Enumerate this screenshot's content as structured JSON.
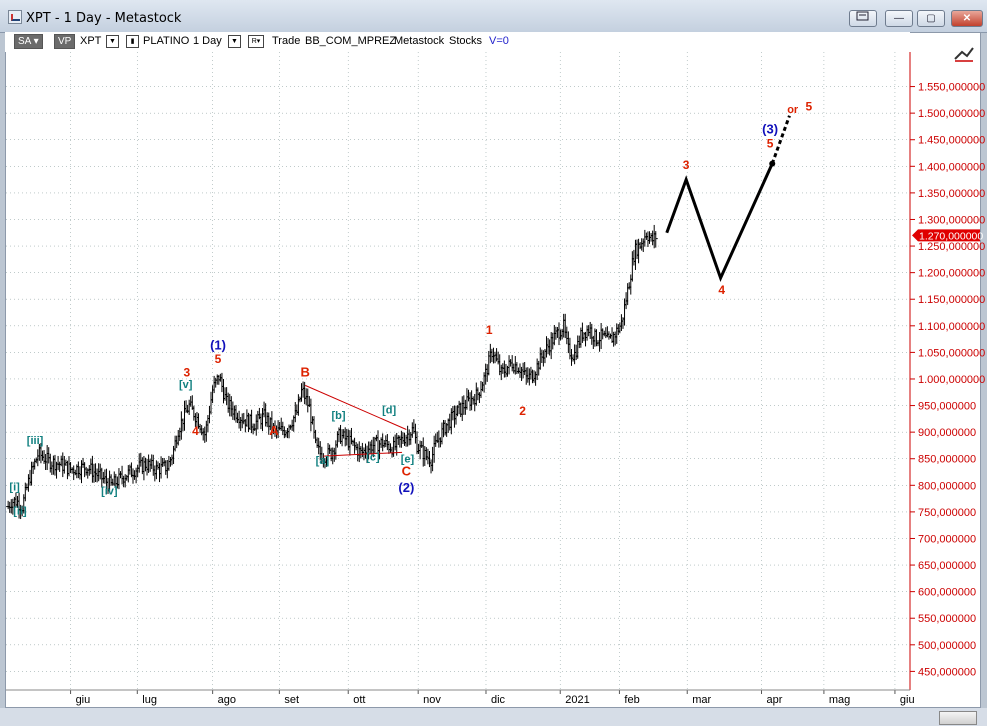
{
  "window": {
    "title": "XPT - 1 Day - Metastock",
    "buttons": {
      "restore_icon": "restore-icon",
      "minimize": "—",
      "maximize": "▢",
      "close": "✕"
    }
  },
  "toolbar": {
    "sa_label": "SA",
    "vp_label": "VP",
    "symbol": "XPT",
    "security_name": "PLATINO",
    "periodicity": "1 Day",
    "r_label": "R",
    "trade_label": "Trade",
    "template": "BB_COM_MPREZ",
    "source": "Metastock",
    "type": "Stocks",
    "volume": "V=0"
  },
  "chart_data": {
    "type": "bar",
    "series_color": "#000000",
    "y_axis": {
      "range": [
        415,
        1615
      ],
      "ticks": [
        "450,000000",
        "500,000000",
        "550,000000",
        "600,000000",
        "650,000000",
        "700,000000",
        "750,000000",
        "800,000000",
        "850,000000",
        "900,000000",
        "950,000000",
        "1.000,000000",
        "1.050,000000",
        "1.100,000000",
        "1.150,000000",
        "1.200,000000",
        "1.250,000000",
        "1.300,000000",
        "1.350,000000",
        "1.400,000000",
        "1.450,000000",
        "1.500,000000",
        "1.550,000000"
      ],
      "tick_values": [
        450,
        500,
        550,
        600,
        650,
        700,
        750,
        800,
        850,
        900,
        950,
        1000,
        1050,
        1100,
        1150,
        1200,
        1250,
        1300,
        1350,
        1400,
        1450,
        1500,
        1550
      ],
      "last_price_label": "1.270,000000",
      "last_price": 1270,
      "last_price_color": "#e00000"
    },
    "x_axis": {
      "ticks": [
        "giu",
        "lug",
        "ago",
        "set",
        "ott",
        "nov",
        "dic",
        "2021",
        "feb",
        "mar",
        "apr",
        "mag",
        "giu"
      ],
      "tick_days": [
        0,
        62,
        132,
        194,
        258,
        323,
        386,
        455,
        510,
        573,
        642,
        700,
        766
      ]
    },
    "price_path": [
      [
        -58,
        760
      ],
      [
        -55,
        770
      ],
      [
        -50,
        770
      ],
      [
        -45,
        760
      ],
      [
        -38,
        815
      ],
      [
        -30,
        860
      ],
      [
        -20,
        845
      ],
      [
        -10,
        840
      ],
      [
        0,
        830
      ],
      [
        15,
        835
      ],
      [
        25,
        820
      ],
      [
        38,
        800
      ],
      [
        50,
        818
      ],
      [
        60,
        830
      ],
      [
        70,
        840
      ],
      [
        80,
        830
      ],
      [
        90,
        835
      ],
      [
        95,
        860
      ],
      [
        100,
        905
      ],
      [
        110,
        950
      ],
      [
        118,
        925
      ],
      [
        125,
        895
      ],
      [
        132,
        980
      ],
      [
        138,
        1005
      ],
      [
        145,
        955
      ],
      [
        152,
        940
      ],
      [
        160,
        925
      ],
      [
        170,
        915
      ],
      [
        180,
        930
      ],
      [
        190,
        900
      ],
      [
        200,
        905
      ],
      [
        210,
        935
      ],
      [
        215,
        980
      ],
      [
        222,
        945
      ],
      [
        228,
        870
      ],
      [
        234,
        855
      ],
      [
        242,
        860
      ],
      [
        250,
        895
      ],
      [
        260,
        880
      ],
      [
        270,
        860
      ],
      [
        280,
        875
      ],
      [
        290,
        880
      ],
      [
        300,
        870
      ],
      [
        310,
        890
      ],
      [
        318,
        905
      ],
      [
        322,
        875
      ],
      [
        330,
        855
      ],
      [
        335,
        850
      ],
      [
        340,
        880
      ],
      [
        348,
        910
      ],
      [
        358,
        935
      ],
      [
        368,
        955
      ],
      [
        378,
        970
      ],
      [
        385,
        1005
      ],
      [
        392,
        1055
      ],
      [
        400,
        1010
      ],
      [
        410,
        1030
      ],
      [
        418,
        1020
      ],
      [
        424,
        1000
      ],
      [
        430,
        1010
      ],
      [
        440,
        1050
      ],
      [
        450,
        1080
      ],
      [
        458,
        1100
      ],
      [
        462,
        1055
      ],
      [
        468,
        1045
      ],
      [
        475,
        1085
      ],
      [
        482,
        1095
      ],
      [
        488,
        1075
      ],
      [
        494,
        1080
      ],
      [
        500,
        1070
      ],
      [
        506,
        1085
      ],
      [
        512,
        1105
      ],
      [
        518,
        1170
      ],
      [
        524,
        1240
      ],
      [
        530,
        1255
      ],
      [
        535,
        1275
      ],
      [
        540,
        1260
      ],
      [
        545,
        1270
      ]
    ],
    "projection": [
      [
        554,
        1275
      ],
      [
        572,
        1375
      ],
      [
        604,
        1190
      ],
      [
        652,
        1405
      ]
    ],
    "projection_dotted": [
      [
        652,
        1405
      ],
      [
        668,
        1495
      ]
    ],
    "lines": [
      {
        "from": [
          218,
          988
        ],
        "to": [
          312,
          905
        ],
        "color": "#cc0000"
      },
      {
        "from": [
          235,
          855
        ],
        "to": [
          308,
          862
        ],
        "color": "#cc0000"
      }
    ],
    "annotations": [
      {
        "text": "[i]",
        "day": -52,
        "price": 790,
        "color": "#118080",
        "size": 11
      },
      {
        "text": "[ii]",
        "day": -47,
        "price": 745,
        "color": "#118080",
        "size": 11
      },
      {
        "text": "[iii]",
        "day": -33,
        "price": 878,
        "color": "#118080",
        "size": 11
      },
      {
        "text": "[iv]",
        "day": 36,
        "price": 783,
        "color": "#118080",
        "size": 11
      },
      {
        "text": "[v]",
        "day": 107,
        "price": 983,
        "color": "#118080",
        "size": 11
      },
      {
        "text": "3",
        "day": 108,
        "price": 1005,
        "color": "#dd2200",
        "size": 12
      },
      {
        "text": "4",
        "day": 116,
        "price": 895,
        "color": "#dd2200",
        "size": 12
      },
      {
        "text": "(1)",
        "day": 137,
        "price": 1055,
        "color": "#1010bb",
        "size": 13
      },
      {
        "text": "5",
        "day": 137,
        "price": 1030,
        "color": "#dd2200",
        "size": 12
      },
      {
        "text": "B",
        "day": 218,
        "price": 1005,
        "color": "#dd2200",
        "size": 13
      },
      {
        "text": "A",
        "day": 189,
        "price": 895,
        "color": "#dd2200",
        "size": 13
      },
      {
        "text": "[b]",
        "day": 249,
        "price": 925,
        "color": "#118080",
        "size": 11
      },
      {
        "text": "[d]",
        "day": 296,
        "price": 935,
        "color": "#118080",
        "size": 11
      },
      {
        "text": "[a]",
        "day": 234,
        "price": 840,
        "color": "#118080",
        "size": 11
      },
      {
        "text": "[c]",
        "day": 281,
        "price": 847,
        "color": "#118080",
        "size": 11
      },
      {
        "text": "[e]",
        "day": 313,
        "price": 843,
        "color": "#118080",
        "size": 11
      },
      {
        "text": "C",
        "day": 312,
        "price": 818,
        "color": "#dd2200",
        "size": 13
      },
      {
        "text": "(2)",
        "day": 312,
        "price": 787,
        "color": "#1010bb",
        "size": 13
      },
      {
        "text": "1",
        "day": 389,
        "price": 1085,
        "color": "#dd2200",
        "size": 12
      },
      {
        "text": "2",
        "day": 420,
        "price": 932,
        "color": "#dd2200",
        "size": 12
      },
      {
        "text": "3",
        "day": 572,
        "price": 1395,
        "color": "#dd2200",
        "size": 12
      },
      {
        "text": "4",
        "day": 605,
        "price": 1160,
        "color": "#dd2200",
        "size": 12
      },
      {
        "text": "(3)",
        "day": 650,
        "price": 1462,
        "color": "#1010bb",
        "size": 13
      },
      {
        "text": "5",
        "day": 650,
        "price": 1435,
        "color": "#dd2200",
        "size": 12
      },
      {
        "text": "or",
        "day": 671,
        "price": 1500,
        "color": "#dd2200",
        "size": 11
      },
      {
        "text": "5",
        "day": 686,
        "price": 1505,
        "color": "#dd2200",
        "size": 12
      }
    ]
  },
  "icons": {
    "corner_tool": "trend-tool-icon",
    "resize": "resize-grip-icon"
  }
}
